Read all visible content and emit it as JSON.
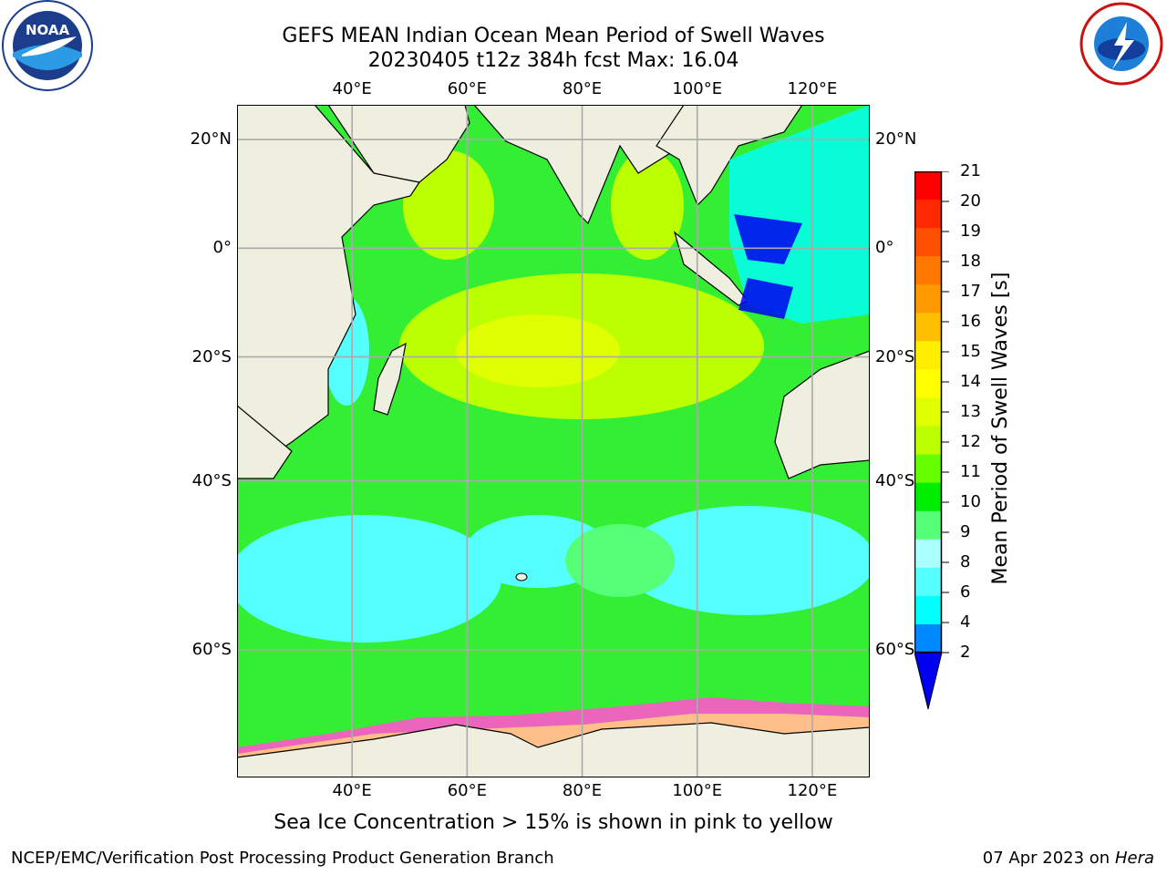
{
  "title_line1": "GEFS MEAN Indian Ocean Mean Period of Swell Waves",
  "title_line2": "20230405 t12z 384h fcst   Max: 16.04",
  "lon_labels": [
    "40°E",
    "60°E",
    "80°E",
    "100°E",
    "120°E"
  ],
  "lon_values": [
    40,
    60,
    80,
    100,
    120
  ],
  "lat_labels": [
    "20°N",
    "0°",
    "20°S",
    "40°S",
    "60°S"
  ],
  "lat_values": [
    20,
    0,
    -20,
    -40,
    -60
  ],
  "map_extent": {
    "lon_min": 20,
    "lon_max": 130,
    "lat_min": -70,
    "lat_max": 26
  },
  "colorbar": {
    "label": "Mean Period of Swell Waves [s]",
    "ticks": [
      "21",
      "20",
      "19",
      "18",
      "17",
      "16",
      "15",
      "14",
      "13",
      "12",
      "11",
      "10",
      "9",
      "8",
      "6",
      "4",
      "2"
    ],
    "colors": [
      "#ff0000",
      "#ff2800",
      "#ff5000",
      "#ff7800",
      "#ff9900",
      "#ffbf00",
      "#ffee00",
      "#ffff00",
      "#e0ff00",
      "#bbff00",
      "#66ff00",
      "#00ee00",
      "#55ff77",
      "#aaffff",
      "#55ffff",
      "#00ffff",
      "#0088ff"
    ],
    "extend_color": "#0000ee"
  },
  "colors": {
    "land": "#efefdf",
    "ocean_default": "#33ee33",
    "grid": "#aaaaaa",
    "ice": "#ff55cc"
  },
  "note": "Sea Ice Concentration > 15% is shown in pink to yellow",
  "footer_left": "NCEP/EMC/Verification Post Processing Product Generation Branch",
  "footer_date": "07 Apr 2023 on",
  "footer_machine": "Hera",
  "logos": {
    "left": "NOAA",
    "right": "NATIONAL WEATHER SERVICE"
  }
}
